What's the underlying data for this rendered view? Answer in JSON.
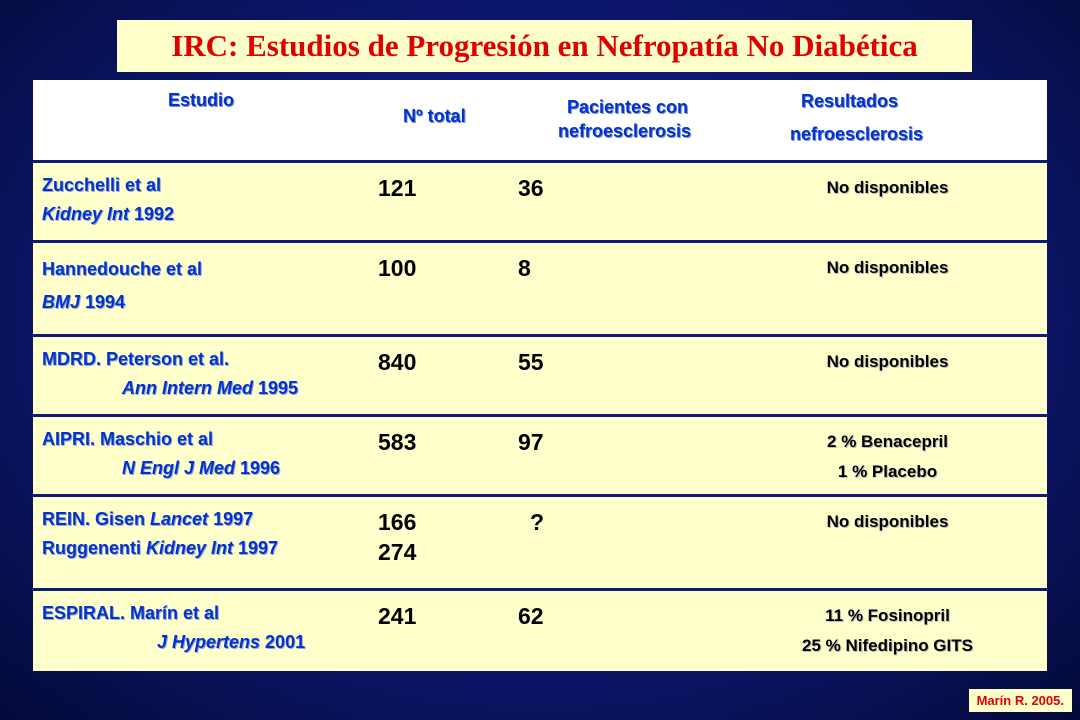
{
  "title": "IRC: Estudios de Progresión en Nefropatía No Diabética",
  "headers": {
    "estudio": "Estudio",
    "n_total": "Nº total",
    "pacientes_1": "Pacientes con",
    "pacientes_2": "nefroesclerosis",
    "resultados_1": "Resultados",
    "resultados_2": "nefroesclerosis"
  },
  "rows": [
    {
      "line1": "Zucchelli et al",
      "journal": "Kidney Int",
      "year": " 1992",
      "n": "121",
      "n2": "",
      "pac": "36",
      "res1": "No disponibles",
      "res2": ""
    },
    {
      "line1": "Hannedouche et al",
      "journal": "BMJ",
      "year": " 1994",
      "n": "100",
      "n2": "",
      "pac": "8",
      "res1": "No disponibles",
      "res2": ""
    },
    {
      "line1": "MDRD. Peterson et al.",
      "journal": "Ann Intern Med",
      "year": " 1995",
      "n": "840",
      "n2": "",
      "pac": "55",
      "res1": "No disponibles",
      "res2": ""
    },
    {
      "line1": "AIPRI. Maschio et al",
      "journal": "N Engl J Med",
      "year": " 1996",
      "n": "583",
      "n2": "",
      "pac": "97",
      "res1": "2 % Benacepril",
      "res2": "1 % Placebo"
    },
    {
      "line1a": "REIN. Gisen ",
      "line1j": "Lancet",
      "line1y": " 1997",
      "line2a": "Ruggenenti ",
      "line2j": "Kidney Int",
      "line2y": " 1997",
      "n": "166",
      "n2": "274",
      "pac": "?",
      "res1": "No disponibles",
      "res2": ""
    },
    {
      "line1": "ESPIRAL. Marín et al",
      "journal": "J Hypertens",
      "year": " 2001",
      "n": "241",
      "n2": "",
      "pac": "62",
      "res1": "11 % Fosinopril",
      "res2": "25 % Nifedipino GITS"
    }
  ],
  "credit": "Marín R. 2005."
}
